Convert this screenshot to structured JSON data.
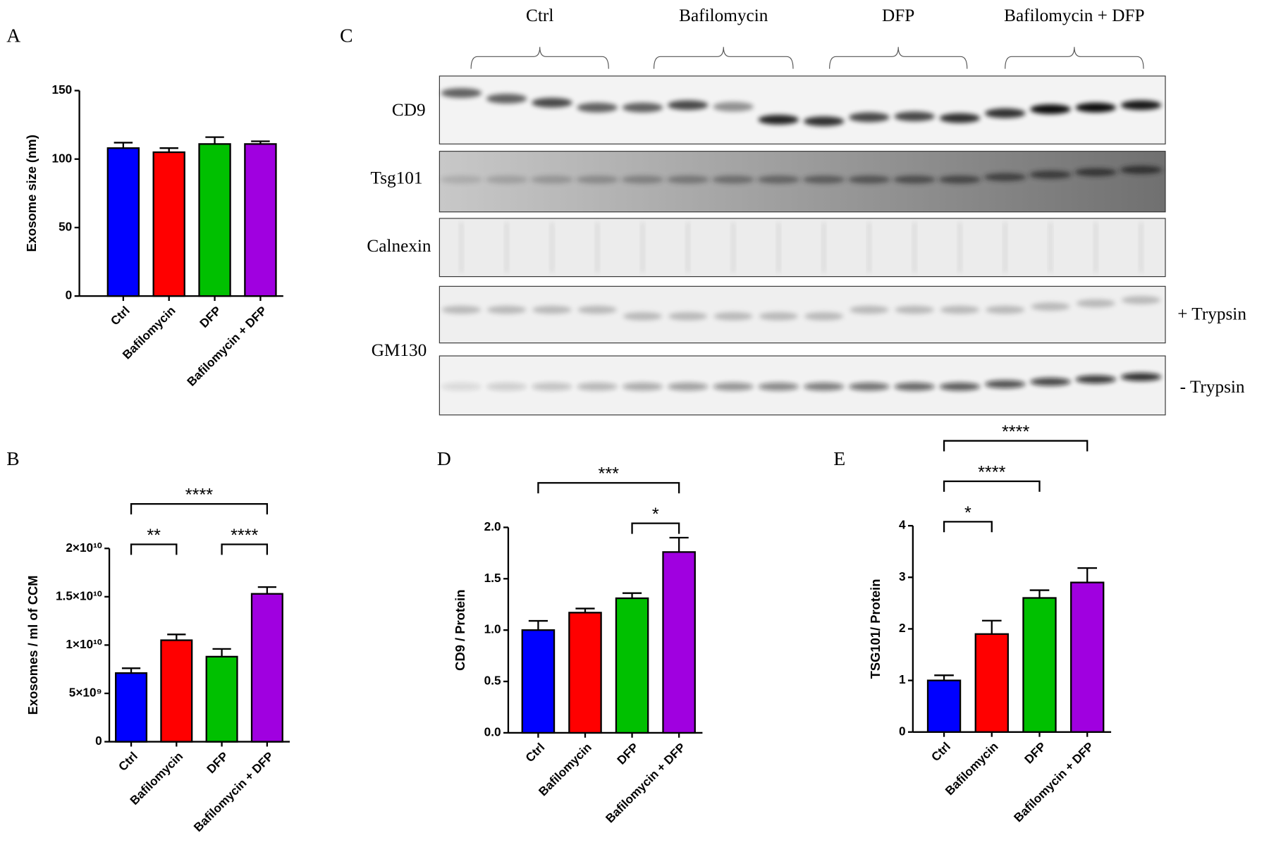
{
  "chart_data": [
    {
      "type": "bar",
      "panel": "A",
      "y_label": "Exosome size (nm)",
      "categories": [
        "Ctrl",
        "Bafilomycin",
        "DFP",
        "Bafilomycin + DFP"
      ],
      "values": [
        108,
        105,
        111,
        111
      ],
      "errors": [
        4,
        3,
        5,
        2
      ],
      "colors": [
        "#0000ff",
        "#ff0000",
        "#00c000",
        "#a000e0"
      ],
      "ylim": [
        0,
        150
      ],
      "yticks": [
        0,
        50,
        100,
        150
      ]
    },
    {
      "type": "bar",
      "panel": "B",
      "y_label": "Exosomes / ml of CCM",
      "categories": [
        "Ctrl",
        "Bafilomycin",
        "DFP",
        "Bafilomycin + DFP"
      ],
      "values": [
        7100000000,
        10500000000,
        8800000000,
        15300000000
      ],
      "errors": [
        500000000,
        600000000,
        800000000,
        700000000
      ],
      "colors": [
        "#0000ff",
        "#ff0000",
        "#00c000",
        "#a000e0"
      ],
      "ylim": [
        0,
        20000000000
      ],
      "yticks": [
        0,
        {
          "value": 5000000000,
          "label": "5×10⁹"
        },
        {
          "value": 10000000000,
          "label": "1×10¹⁰"
        },
        {
          "value": 15000000000,
          "label": "1.5×10¹⁰"
        },
        {
          "value": 20000000000,
          "label": "2×10¹⁰"
        }
      ],
      "annotations": [
        {
          "label": "**",
          "between": [
            "Ctrl",
            "Bafilomycin"
          ]
        },
        {
          "label": "****",
          "between": [
            "DFP",
            "Bafilomycin + DFP"
          ]
        },
        {
          "label": "****",
          "between": [
            "Ctrl",
            "Bafilomycin + DFP"
          ]
        }
      ]
    },
    {
      "type": "bar",
      "panel": "D",
      "y_label": "CD9 / Protein",
      "categories": [
        "Ctrl",
        "Bafilomycin",
        "DFP",
        "Bafilomycin + DFP"
      ],
      "values": [
        1.0,
        1.17,
        1.31,
        1.76
      ],
      "errors": [
        0.09,
        0.04,
        0.05,
        0.14
      ],
      "colors": [
        "#0000ff",
        "#ff0000",
        "#00c000",
        "#a000e0"
      ],
      "ylim": [
        0,
        2
      ],
      "yticks": [
        {
          "value": 0,
          "label": "0.0"
        },
        0.5,
        {
          "value": 1,
          "label": "1.0"
        },
        1.5,
        {
          "value": 2,
          "label": "2.0"
        }
      ],
      "annotations": [
        {
          "label": "*",
          "between": [
            "DFP",
            "Bafilomycin + DFP"
          ]
        },
        {
          "label": "***",
          "between": [
            "Ctrl",
            "Bafilomycin + DFP"
          ]
        }
      ]
    },
    {
      "type": "bar",
      "panel": "E",
      "y_label": "TSG101/ Protein",
      "categories": [
        "Ctrl",
        "Bafilomycin",
        "DFP",
        "Bafilomycin + DFP"
      ],
      "values": [
        1.0,
        1.9,
        2.6,
        2.9
      ],
      "errors": [
        0.1,
        0.26,
        0.15,
        0.28
      ],
      "colors": [
        "#0000ff",
        "#ff0000",
        "#00c000",
        "#a000e0"
      ],
      "ylim": [
        0,
        4
      ],
      "yticks": [
        0,
        1,
        2,
        3,
        4
      ],
      "annotations": [
        {
          "label": "*",
          "between": [
            "Ctrl",
            "Bafilomycin"
          ]
        },
        {
          "label": "****",
          "between": [
            "Ctrl",
            "DFP"
          ]
        },
        {
          "label": "****",
          "between": [
            "Ctrl",
            "Bafilomycin + DFP"
          ]
        }
      ]
    }
  ],
  "blot": {
    "panel": "C",
    "groups": [
      "Ctrl",
      "Bafilomycin",
      "DFP",
      "Bafilomycin + DFP"
    ],
    "rows": [
      "CD9",
      "Tsg101",
      "Calnexin",
      "GM130"
    ],
    "conditions": [
      "+ Trypsin",
      "- Trypsin"
    ]
  }
}
